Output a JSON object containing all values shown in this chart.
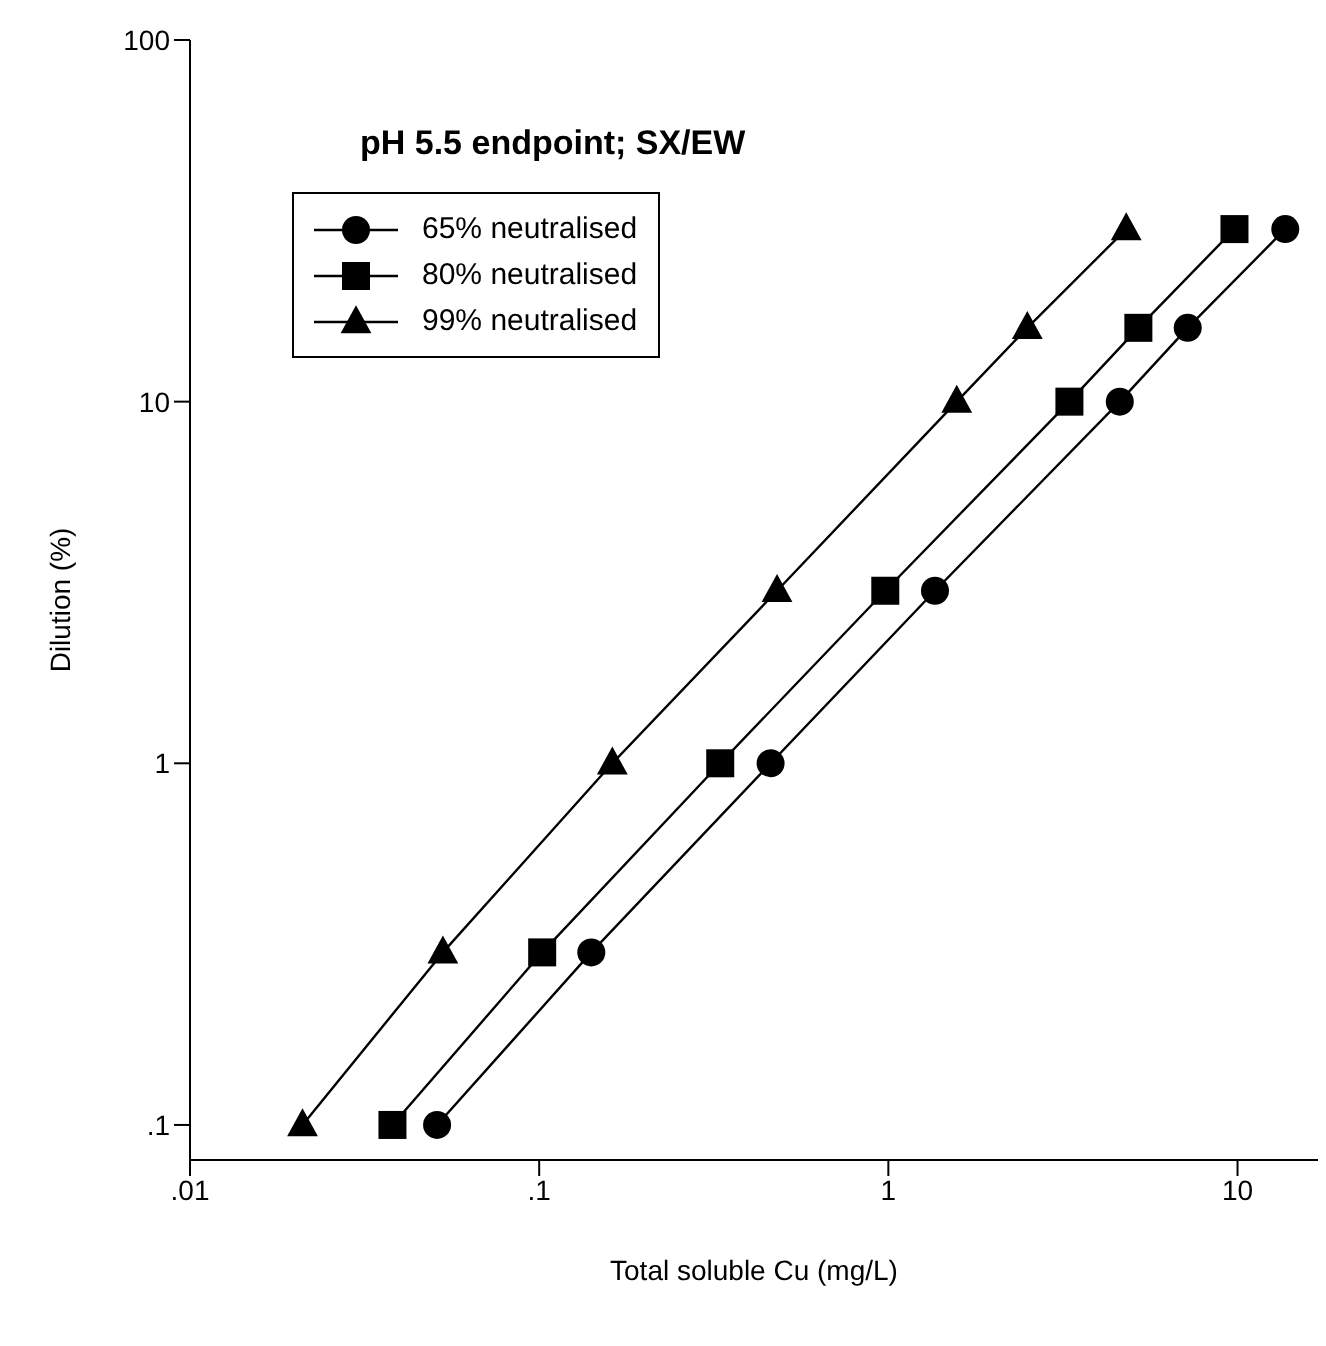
{
  "chart_data": {
    "type": "line",
    "title": "pH 5.5 endpoint; SX/EW",
    "xlabel": "Total soluble Cu (mg/L)",
    "ylabel": "Dilution (%)",
    "log": "xy",
    "grid": false,
    "legend": "top left",
    "marker": "circle",
    "line_style": "solid",
    "xlim": [
      0.01,
      17
    ],
    "xticks": [
      {
        "value": 0.01,
        "label": ".01"
      },
      {
        "value": 0.1,
        "label": ".1"
      },
      1,
      10
    ],
    "ylim": [
      0.08,
      100
    ],
    "yticks": [
      {
        "value": 0.1,
        "label": ".1"
      },
      1,
      10,
      100
    ],
    "series": [
      {
        "name": "65% neutralised",
        "color": "#000000",
        "marker": "circle",
        "x": [
          0.051,
          0.141,
          0.46,
          1.36,
          4.6,
          7.2,
          13.7
        ],
        "values": [
          0.1,
          0.3,
          1,
          3,
          10,
          16,
          30
        ]
      },
      {
        "name": "80% neutralised",
        "color": "#000000",
        "marker": "square",
        "x": [
          0.038,
          0.102,
          0.33,
          0.98,
          3.3,
          5.2,
          9.8
        ],
        "values": [
          0.1,
          0.3,
          1,
          3,
          10,
          16,
          30
        ]
      },
      {
        "name": "99% neutralised",
        "color": "#000000",
        "marker": "triangle",
        "x": [
          0.021,
          0.053,
          0.162,
          0.48,
          1.57,
          2.5,
          4.8
        ],
        "values": [
          0.1,
          0.3,
          1,
          3,
          10,
          16,
          30
        ]
      }
    ]
  }
}
